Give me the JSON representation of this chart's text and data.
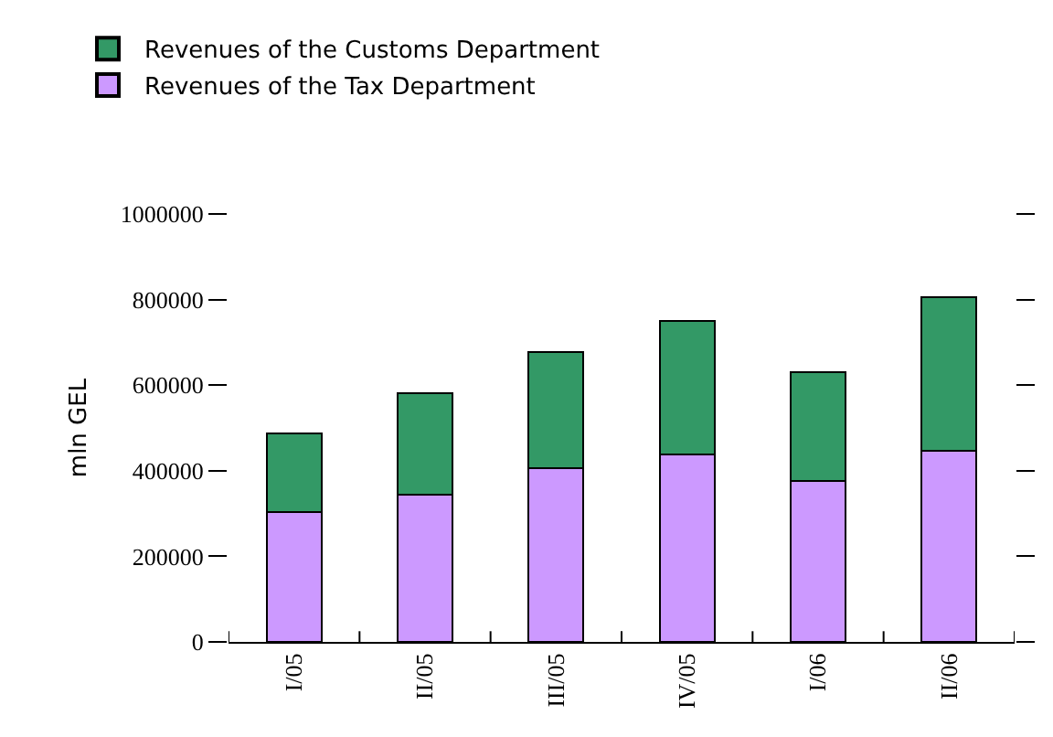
{
  "chart_data": {
    "type": "bar",
    "stacked": true,
    "ylabel": "mln GEL",
    "categories": [
      "I/05",
      "II/05",
      "III/05",
      "IV/05",
      "I/06",
      "II/06"
    ],
    "series": [
      {
        "name": "Revenues of the Tax Department",
        "color": "#cc99ff",
        "values": [
          303000,
          343000,
          407000,
          439000,
          376000,
          447000
        ]
      },
      {
        "name": "Revenues of the Customs Department",
        "color": "#339966",
        "values": [
          184000,
          238000,
          271000,
          310000,
          254000,
          358000
        ]
      }
    ],
    "ylim": [
      0,
      1000000
    ],
    "yticks": [
      0,
      200000,
      400000,
      600000,
      800000,
      1000000
    ],
    "legend": "top left"
  }
}
